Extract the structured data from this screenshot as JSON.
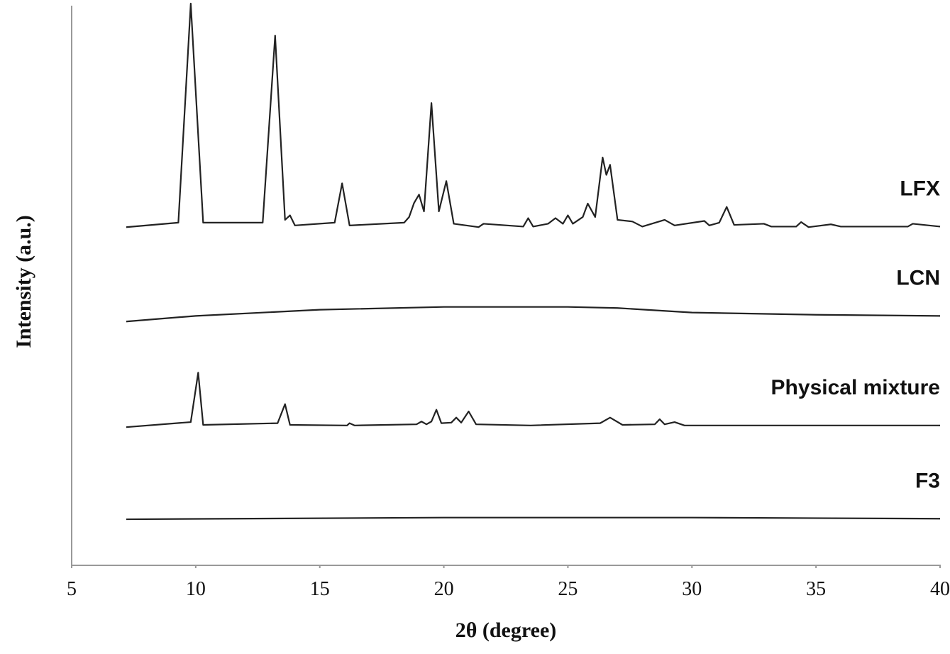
{
  "chart_data": {
    "type": "line",
    "x_label": "2θ (degree)",
    "y_label": "Intensity (a.u.)",
    "xlim": [
      5,
      40
    ],
    "xticks": [
      5,
      10,
      15,
      20,
      25,
      30,
      35,
      40
    ],
    "ylim": [
      0,
      100
    ],
    "color": "#222222",
    "series": [
      {
        "name": "LFX",
        "x": [
          7.2,
          9.3,
          9.8,
          10.3,
          12.7,
          13.2,
          13.6,
          13.8,
          14.0,
          15.6,
          15.9,
          16.2,
          18.4,
          18.6,
          18.8,
          19.0,
          19.2,
          19.5,
          19.8,
          20.1,
          20.4,
          21.4,
          21.6,
          23.2,
          23.4,
          23.6,
          24.2,
          24.5,
          24.8,
          25.0,
          25.2,
          25.6,
          25.8,
          26.1,
          26.4,
          26.55,
          26.7,
          27.0,
          27.6,
          28.0,
          28.9,
          29.3,
          30.5,
          30.7,
          31.1,
          31.4,
          31.7,
          32.9,
          33.2,
          34.2,
          34.4,
          34.7,
          35.6,
          36.0,
          38.7,
          38.9,
          40
        ],
        "values": [
          60.2,
          61,
          100,
          61,
          61,
          94.3,
          61.5,
          62.3,
          60.5,
          61,
          68,
          60.5,
          61,
          62,
          64.5,
          66,
          63,
          82.3,
          63,
          68.4,
          60.8,
          60.2,
          60.8,
          60.3,
          61.8,
          60.3,
          60.8,
          61.8,
          60.8,
          62.3,
          60.8,
          62,
          64.4,
          62,
          72.6,
          69.5,
          71.3,
          61.5,
          61.2,
          60.3,
          61.5,
          60.5,
          61.3,
          60.5,
          61,
          63.8,
          60.6,
          60.8,
          60.3,
          60.3,
          61.1,
          60.2,
          60.7,
          60.3,
          60.3,
          60.8,
          60.3
        ]
      },
      {
        "name": "LCN",
        "x": [
          7.2,
          10,
          15,
          20,
          25,
          27,
          30,
          35,
          40
        ],
        "values": [
          43.4,
          44.4,
          45.5,
          46,
          46,
          45.8,
          45.0,
          44.6,
          44.4
        ]
      },
      {
        "name": "Physical mixture",
        "x": [
          7.2,
          9.8,
          10.1,
          10.3,
          13.3,
          13.6,
          13.8,
          16.1,
          16.2,
          16.4,
          18.9,
          19.1,
          19.3,
          19.5,
          19.7,
          19.9,
          20.3,
          20.5,
          20.7,
          21.0,
          21.3,
          23.5,
          26.3,
          26.7,
          27.2,
          28.5,
          28.7,
          28.9,
          29.3,
          29.7,
          40
        ],
        "values": [
          24.6,
          25.5,
          34.3,
          25,
          25.3,
          28.7,
          25,
          24.9,
          25.3,
          24.9,
          25.1,
          25.6,
          25.1,
          25.6,
          27.7,
          25.3,
          25.4,
          26.3,
          25.4,
          27.4,
          25.1,
          24.9,
          25.3,
          26.3,
          25,
          25.1,
          26,
          25.1,
          25.5,
          24.9,
          24.9
        ]
      },
      {
        "name": "F3",
        "x": [
          7.2,
          20,
          30,
          40
        ],
        "values": [
          8.2,
          8.5,
          8.5,
          8.3
        ]
      }
    ]
  }
}
